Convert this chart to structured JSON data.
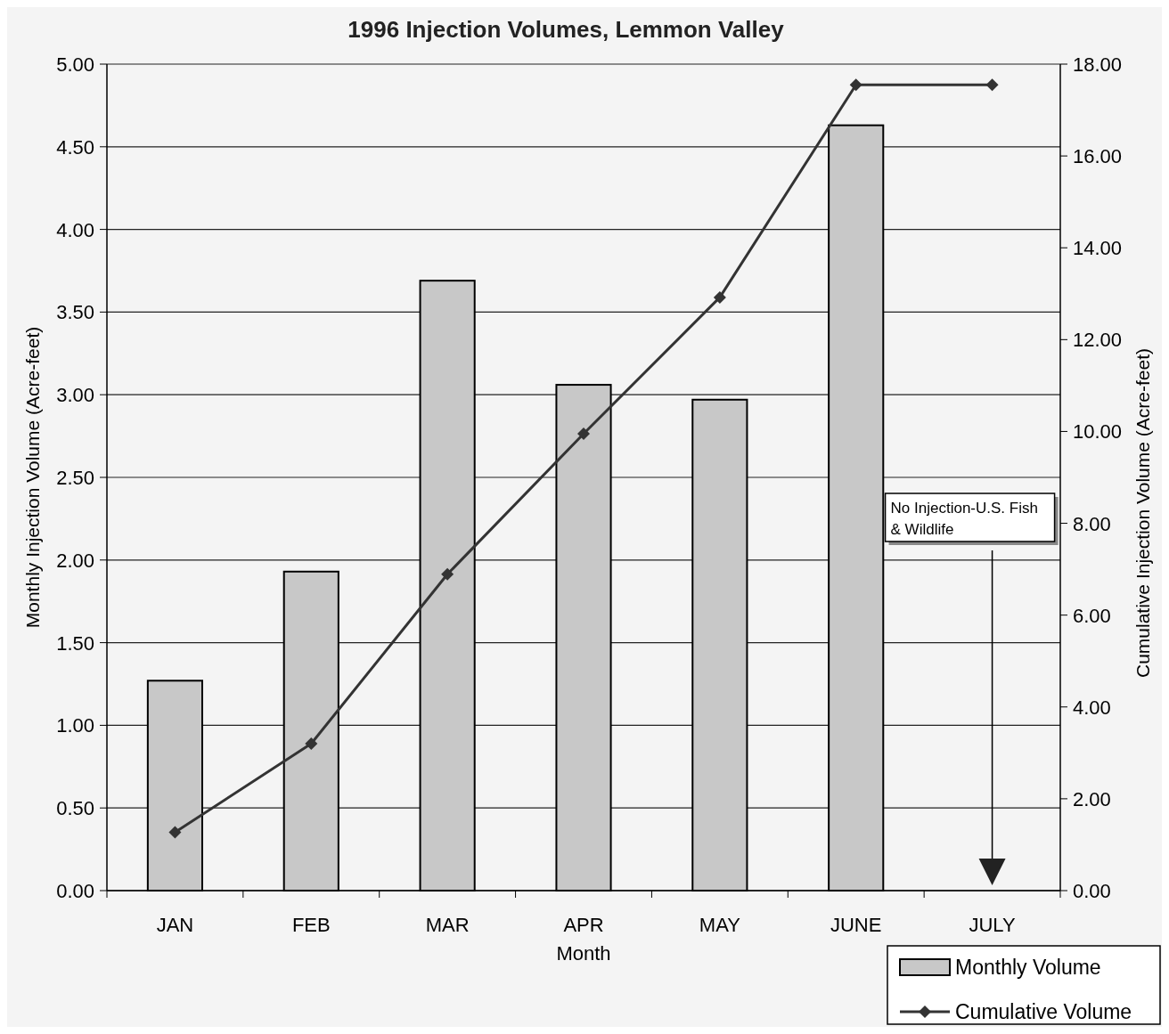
{
  "chart_data": {
    "type": "bar",
    "title": "1996 Injection Volumes, Lemmon Valley",
    "xlabel": "Month",
    "ylabel": "Monthly Injection Volume (Acre-feet)",
    "y2label": "Cumulative Injection Volume (Acre-feet)",
    "categories": [
      "JAN",
      "FEB",
      "MAR",
      "APR",
      "MAY",
      "JUNE",
      "JULY"
    ],
    "series": [
      {
        "name": "Monthly Volume",
        "color": "#c8c8c8",
        "values": [
          1.27,
          1.93,
          3.69,
          3.06,
          2.97,
          4.63,
          null
        ]
      },
      {
        "name": "Cumulative Volume",
        "type": "line",
        "axis": "y2",
        "color": "#333333",
        "marker": "diamond",
        "values": [
          1.27,
          3.2,
          6.89,
          9.95,
          12.92,
          17.55,
          17.55
        ]
      }
    ],
    "ylim": [
      0,
      5
    ],
    "yticks": [
      {
        "value": 0,
        "label": "0.00"
      },
      {
        "value": 0.5,
        "label": "0.50"
      },
      {
        "value": 1,
        "label": "1.00"
      },
      {
        "value": 1.5,
        "label": "1.50"
      },
      {
        "value": 2,
        "label": "2.00"
      },
      {
        "value": 2.5,
        "label": "2.50"
      },
      {
        "value": 3,
        "label": "3.00"
      },
      {
        "value": 3.5,
        "label": "3.50"
      },
      {
        "value": 4,
        "label": "4.00"
      },
      {
        "value": 4.5,
        "label": "4.50"
      },
      {
        "value": 5,
        "label": "5.00"
      }
    ],
    "y2lim": [
      0,
      18
    ],
    "y2ticks": [
      {
        "value": 0,
        "label": "0.00"
      },
      {
        "value": 2,
        "label": "2.00"
      },
      {
        "value": 4,
        "label": "4.00"
      },
      {
        "value": 6,
        "label": "6.00"
      },
      {
        "value": 8,
        "label": "8.00"
      },
      {
        "value": 10,
        "label": "10.00"
      },
      {
        "value": 12,
        "label": "12.00"
      },
      {
        "value": 14,
        "label": "14.00"
      },
      {
        "value": 16,
        "label": "16.00"
      },
      {
        "value": 18,
        "label": "18.00"
      }
    ],
    "grid": "y",
    "legend": "bottom right",
    "annotations": [
      "No Injection-U.S. Fish & Wildlife"
    ]
  }
}
